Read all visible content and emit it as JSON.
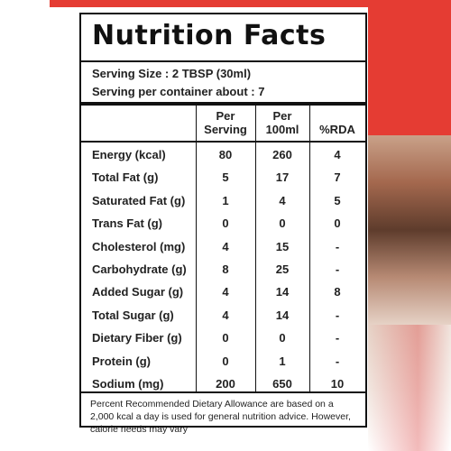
{
  "title": "Nutrition Facts",
  "serving_size": "Serving Size : 2 TBSP (30ml)",
  "servings_per_container": "Serving per container about : 7",
  "columns": {
    "per_serving_line1": "Per",
    "per_serving_line2": "Serving",
    "per_100ml_line1": "Per",
    "per_100ml_line2": "100ml",
    "rda": "%RDA"
  },
  "rows": [
    {
      "name": "Energy (kcal)",
      "per_serving": "80",
      "per_100ml": "260",
      "rda": "4"
    },
    {
      "name": "Total Fat (g)",
      "per_serving": "5",
      "per_100ml": "17",
      "rda": "7"
    },
    {
      "name": "Saturated Fat (g)",
      "per_serving": "1",
      "per_100ml": "4",
      "rda": "5"
    },
    {
      "name": "Trans Fat (g)",
      "per_serving": "0",
      "per_100ml": "0",
      "rda": "0"
    },
    {
      "name": "Cholesterol (mg)",
      "per_serving": "4",
      "per_100ml": "15",
      "rda": "-"
    },
    {
      "name": "Carbohydrate (g)",
      "per_serving": "8",
      "per_100ml": "25",
      "rda": "-"
    },
    {
      "name": "Added Sugar (g)",
      "per_serving": "4",
      "per_100ml": "14",
      "rda": "8"
    },
    {
      "name": "Total Sugar (g)",
      "per_serving": "4",
      "per_100ml": "14",
      "rda": "-"
    },
    {
      "name": "Dietary Fiber (g)",
      "per_serving": "0",
      "per_100ml": "0",
      "rda": "-"
    },
    {
      "name": "Protein (g)",
      "per_serving": "0",
      "per_100ml": "1",
      "rda": "-"
    },
    {
      "name": "Sodium (mg)",
      "per_serving": "200",
      "per_100ml": "650",
      "rda": "10"
    }
  ],
  "footnote": "Percent Recommended Dietary Allowance are based on a 2,000 kcal a day is used for general nutrition advice. However, calorie needs may vary",
  "colors": {
    "accent_red": "#e53c33",
    "text": "#222222",
    "border": "#111111"
  }
}
